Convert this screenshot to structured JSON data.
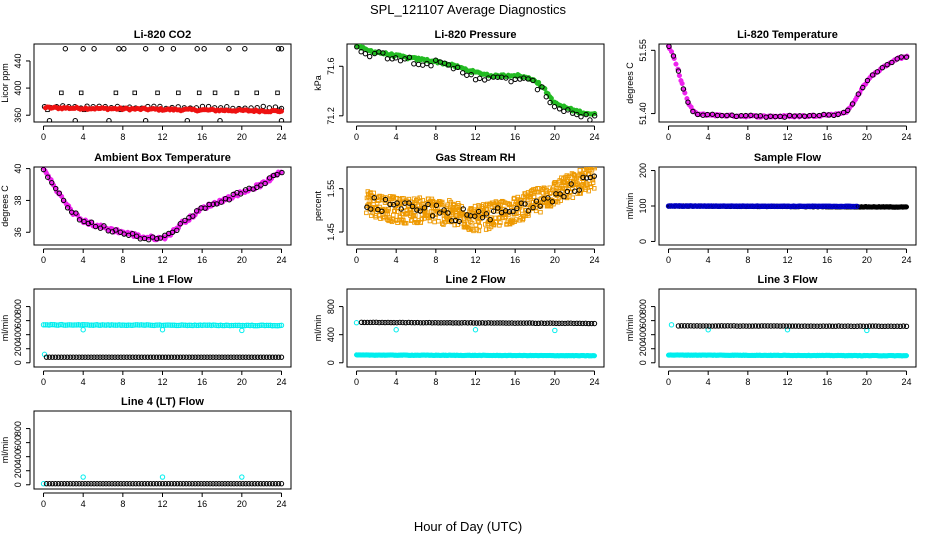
{
  "figure": {
    "title": "SPL_121107  Average Diagnostics",
    "xlabel": "Hour of Day (UTC)",
    "x_ticks": [
      "0",
      "4",
      "8",
      "12",
      "16",
      "20",
      "24"
    ]
  },
  "chart_data": [
    {
      "id": "li820-co2",
      "type": "scatter",
      "title": "Li-820 CO2",
      "ylabel": "Licor ppm",
      "xlim": [
        0,
        24
      ],
      "ylim": [
        350,
        465
      ],
      "yticks": [
        360,
        400,
        440
      ],
      "series": [
        {
          "color": "#000000",
          "marker": "circle-open",
          "kind": "dense",
          "x0": 0.1,
          "x1": 24,
          "n": 40,
          "y_start": 372,
          "y_end": 371,
          "noise": 2
        },
        {
          "color": "#000000",
          "marker": "circle-open",
          "kind": "points",
          "points": [
            [
              2.2,
              458
            ],
            [
              4,
              458
            ],
            [
              5.1,
              458
            ],
            [
              7.6,
              458
            ],
            [
              8.1,
              458
            ],
            [
              10.3,
              458
            ],
            [
              11.9,
              458
            ],
            [
              13.1,
              458
            ],
            [
              15.5,
              458
            ],
            [
              16.2,
              458
            ],
            [
              18.7,
              458
            ],
            [
              20.3,
              458
            ],
            [
              23.7,
              458
            ],
            [
              24,
              458
            ],
            [
              0.6,
              352
            ],
            [
              3.2,
              352
            ],
            [
              6.6,
              352
            ],
            [
              10.3,
              352
            ],
            [
              14.5,
              352
            ],
            [
              17.8,
              352
            ],
            [
              24,
              352
            ]
          ]
        },
        {
          "color": "#000000",
          "marker": "square-open",
          "kind": "points",
          "points": [
            [
              1.8,
              393
            ],
            [
              3.8,
              393
            ],
            [
              7.3,
              393
            ],
            [
              9.2,
              393
            ],
            [
              11.5,
              393
            ],
            [
              13.6,
              393
            ],
            [
              15.7,
              393
            ],
            [
              17.3,
              393
            ],
            [
              19.5,
              393
            ],
            [
              21.5,
              393
            ],
            [
              23.6,
              393
            ],
            [
              0.4,
              368
            ],
            [
              4.1,
              368
            ],
            [
              7.8,
              368
            ],
            [
              12,
              368
            ],
            [
              15.8,
              368
            ],
            [
              20,
              368
            ],
            [
              23.8,
              368
            ]
          ]
        },
        {
          "color": "#ee1111",
          "marker": "disc",
          "kind": "dense",
          "x0": 0.2,
          "x1": 24,
          "n": 130,
          "y_start": 371,
          "y_end": 366,
          "noise": 1.5
        }
      ]
    },
    {
      "id": "li820-pressure",
      "type": "scatter",
      "title": "Li-820 Pressure",
      "ylabel": "kPa",
      "xlim": [
        0,
        24
      ],
      "ylim": [
        71.15,
        71.78
      ],
      "yticks": [
        71.2,
        71.6
      ],
      "ytick_labels": [
        "71.2",
        "71.6"
      ],
      "series": [
        {
          "color": "#22bb22",
          "marker": "disc",
          "kind": "curve",
          "n": 150,
          "noise": 0.01,
          "curve": [
            [
              0,
              71.77
            ],
            [
              1,
              71.73
            ],
            [
              3,
              71.7
            ],
            [
              5,
              71.67
            ],
            [
              8,
              71.64
            ],
            [
              10,
              71.6
            ],
            [
              12,
              71.55
            ],
            [
              14,
              71.52
            ],
            [
              16,
              71.53
            ],
            [
              18,
              71.49
            ],
            [
              19,
              71.41
            ],
            [
              20,
              71.3
            ],
            [
              22,
              71.24
            ],
            [
              24,
              71.21
            ]
          ]
        },
        {
          "color": "#000000",
          "marker": "circle-open",
          "kind": "curve",
          "n": 55,
          "noise": 0.03,
          "curve": [
            [
              0,
              71.77
            ],
            [
              1,
              71.71
            ],
            [
              3,
              71.69
            ],
            [
              5,
              71.66
            ],
            [
              8,
              71.62
            ],
            [
              10,
              71.58
            ],
            [
              12,
              71.52
            ],
            [
              14,
              71.49
            ],
            [
              16,
              71.5
            ],
            [
              18,
              71.46
            ],
            [
              19,
              71.38
            ],
            [
              20,
              71.28
            ],
            [
              22,
              71.22
            ],
            [
              24,
              71.18
            ]
          ]
        }
      ]
    },
    {
      "id": "li820-temperature",
      "type": "scatter",
      "title": "Li-820 Temperature",
      "ylabel": "degrees C",
      "xlim": [
        0,
        24
      ],
      "ylim": [
        51.38,
        51.565
      ],
      "yticks": [
        51.4,
        51.55
      ],
      "ytick_labels": [
        "51.40",
        "51.55"
      ],
      "series": [
        {
          "color": "#ee22ee",
          "marker": "disc",
          "kind": "curve",
          "n": 160,
          "noise": 0.002,
          "curve": [
            [
              0,
              51.56
            ],
            [
              0.5,
              51.535
            ],
            [
              1,
              51.5
            ],
            [
              1.5,
              51.46
            ],
            [
              2,
              51.425
            ],
            [
              2.5,
              51.405
            ],
            [
              3,
              51.398
            ],
            [
              6,
              51.395
            ],
            [
              10,
              51.393
            ],
            [
              14,
              51.394
            ],
            [
              17,
              51.398
            ],
            [
              18,
              51.405
            ],
            [
              18.8,
              51.43
            ],
            [
              19.5,
              51.46
            ],
            [
              20.5,
              51.49
            ],
            [
              22,
              51.515
            ],
            [
              23,
              51.53
            ],
            [
              24,
              51.535
            ]
          ]
        },
        {
          "color": "#000000",
          "marker": "circle-open",
          "kind": "curve",
          "n": 50,
          "noise": 0.002,
          "curve": [
            [
              0,
              51.56
            ],
            [
              0.5,
              51.535
            ],
            [
              1,
              51.5
            ],
            [
              1.5,
              51.46
            ],
            [
              2,
              51.425
            ],
            [
              2.5,
              51.405
            ],
            [
              3,
              51.398
            ],
            [
              6,
              51.395
            ],
            [
              10,
              51.393
            ],
            [
              14,
              51.394
            ],
            [
              17,
              51.398
            ],
            [
              18,
              51.405
            ],
            [
              18.8,
              51.43
            ],
            [
              19.5,
              51.46
            ],
            [
              20.5,
              51.49
            ],
            [
              22,
              51.515
            ],
            [
              23,
              51.53
            ],
            [
              24,
              51.535
            ]
          ]
        }
      ]
    },
    {
      "id": "ambient-box-temperature",
      "type": "scatter",
      "title": "Ambient Box Temperature",
      "ylabel": "degrees C",
      "xlim": [
        0,
        24
      ],
      "ylim": [
        35.2,
        40.1
      ],
      "yticks": [
        36,
        38,
        40
      ],
      "series": [
        {
          "color": "#ee22ee",
          "marker": "disc",
          "kind": "curve",
          "n": 160,
          "noise": 0.12,
          "curve": [
            [
              0,
              40
            ],
            [
              1,
              39
            ],
            [
              2,
              38
            ],
            [
              3,
              37.2
            ],
            [
              4,
              36.7
            ],
            [
              6,
              36.3
            ],
            [
              8,
              36
            ],
            [
              10,
              35.7
            ],
            [
              12,
              35.6
            ],
            [
              13,
              36
            ],
            [
              14,
              36.6
            ],
            [
              15,
              37
            ],
            [
              16,
              37.5
            ],
            [
              18,
              38
            ],
            [
              20,
              38.5
            ],
            [
              22,
              39
            ],
            [
              24,
              39.8
            ]
          ]
        },
        {
          "color": "#000000",
          "marker": "circle-open",
          "kind": "curve",
          "n": 60,
          "noise": 0.15,
          "curve": [
            [
              0,
              40
            ],
            [
              1,
              39
            ],
            [
              2,
              38
            ],
            [
              3,
              37.2
            ],
            [
              4,
              36.7
            ],
            [
              6,
              36.3
            ],
            [
              8,
              36
            ],
            [
              10,
              35.7
            ],
            [
              12,
              35.6
            ],
            [
              13,
              36
            ],
            [
              14,
              36.6
            ],
            [
              15,
              37
            ],
            [
              16,
              37.5
            ],
            [
              18,
              38
            ],
            [
              20,
              38.5
            ],
            [
              22,
              39
            ],
            [
              24,
              39.8
            ]
          ]
        }
      ]
    },
    {
      "id": "gas-stream-rh",
      "type": "scatter",
      "title": "Gas Stream RH",
      "ylabel": "percent",
      "xlim": [
        0,
        24
      ],
      "ylim": [
        1.42,
        1.6
      ],
      "yticks": [
        1.45,
        1.55
      ],
      "ytick_labels": [
        "1.45",
        "1.55"
      ],
      "series": [
        {
          "color": "#ee9900",
          "marker": "square-open",
          "kind": "curve",
          "n": 650,
          "noise": 0.03,
          "curve": [
            [
              1,
              1.52
            ],
            [
              4,
              1.5
            ],
            [
              8,
              1.5
            ],
            [
              12,
              1.48
            ],
            [
              14,
              1.49
            ],
            [
              16,
              1.5
            ],
            [
              20,
              1.54
            ],
            [
              24,
              1.58
            ]
          ]
        },
        {
          "color": "#000000",
          "marker": "circle-open",
          "kind": "curve",
          "n": 60,
          "noise": 0.018,
          "curve": [
            [
              1,
              1.52
            ],
            [
              4,
              1.5
            ],
            [
              8,
              1.5
            ],
            [
              12,
              1.48
            ],
            [
              14,
              1.49
            ],
            [
              16,
              1.5
            ],
            [
              20,
              1.54
            ],
            [
              24,
              1.58
            ]
          ]
        }
      ]
    },
    {
      "id": "sample-flow",
      "type": "scatter",
      "title": "Sample Flow",
      "ylabel": "ml/min",
      "xlim": [
        0,
        24
      ],
      "ylim": [
        -10,
        210
      ],
      "yticks": [
        0,
        100,
        200
      ],
      "series": [
        {
          "color": "#000000",
          "marker": "disc",
          "kind": "dense",
          "x0": 0,
          "x1": 24,
          "n": 260,
          "y_start": 100,
          "y_end": 97,
          "noise": 0.8
        },
        {
          "color": "#0000cc",
          "marker": "circle-open",
          "kind": "dense",
          "x0": 0,
          "x1": 19,
          "n": 120,
          "y_start": 100,
          "y_end": 99,
          "noise": 0.5
        }
      ]
    },
    {
      "id": "line-1-flow",
      "type": "scatter",
      "title": "Line 1 Flow",
      "ylabel": "ml/min",
      "xlim": [
        0,
        24
      ],
      "ylim": [
        -60,
        1050
      ],
      "yticks": [
        0,
        200,
        400,
        600,
        800
      ],
      "series": [
        {
          "color": "#00eeee",
          "marker": "circle-open",
          "kind": "dense",
          "x0": 0,
          "x1": 24,
          "n": 130,
          "y_start": 540,
          "y_end": 530,
          "noise": 4
        },
        {
          "color": "#00eeee",
          "marker": "circle-open",
          "kind": "points",
          "points": [
            [
              4,
              470
            ],
            [
              12,
              470
            ],
            [
              20,
              460
            ],
            [
              0.1,
              120
            ]
          ]
        },
        {
          "color": "#000000",
          "marker": "circle-open",
          "kind": "dense",
          "x0": 0.3,
          "x1": 24,
          "n": 80,
          "y_start": 80,
          "y_end": 80,
          "noise": 0
        }
      ]
    },
    {
      "id": "line-2-flow",
      "type": "scatter",
      "title": "Line 2 Flow",
      "ylabel": "ml/min",
      "xlim": [
        0,
        24
      ],
      "ylim": [
        -60,
        1050
      ],
      "yticks": [
        0,
        400,
        800
      ],
      "series": [
        {
          "color": "#00eeee",
          "marker": "disc",
          "kind": "dense",
          "x0": 0,
          "x1": 24,
          "n": 220,
          "y_start": 110,
          "y_end": 100,
          "noise": 3
        },
        {
          "color": "#00eeee",
          "marker": "circle-open",
          "kind": "points",
          "points": [
            [
              0,
              570
            ],
            [
              4,
              470
            ],
            [
              12,
              470
            ],
            [
              20,
              460
            ]
          ]
        },
        {
          "color": "#000000",
          "marker": "circle-open",
          "kind": "dense",
          "x0": 0.5,
          "x1": 24,
          "n": 80,
          "y_start": 575,
          "y_end": 560,
          "noise": 2
        }
      ]
    },
    {
      "id": "line-3-flow",
      "type": "scatter",
      "title": "Line 3 Flow",
      "ylabel": "ml/min",
      "xlim": [
        0,
        24
      ],
      "ylim": [
        -60,
        1050
      ],
      "yticks": [
        0,
        200,
        400,
        600,
        800
      ],
      "series": [
        {
          "color": "#00eeee",
          "marker": "disc",
          "kind": "dense",
          "x0": 0,
          "x1": 24,
          "n": 220,
          "y_start": 110,
          "y_end": 100,
          "noise": 3
        },
        {
          "color": "#00eeee",
          "marker": "circle-open",
          "kind": "points",
          "points": [
            [
              0.3,
              540
            ],
            [
              4,
              470
            ],
            [
              12,
              470
            ],
            [
              20,
              460
            ]
          ]
        },
        {
          "color": "#000000",
          "marker": "circle-open",
          "kind": "dense",
          "x0": 1,
          "x1": 24,
          "n": 75,
          "y_start": 525,
          "y_end": 520,
          "noise": 2
        }
      ]
    },
    {
      "id": "line-4-lt-flow",
      "type": "scatter",
      "title": "Line 4 (LT) Flow",
      "ylabel": "ml/min",
      "xlim": [
        0,
        24
      ],
      "ylim": [
        -60,
        1050
      ],
      "yticks": [
        0,
        200,
        400,
        600,
        800
      ],
      "series": [
        {
          "color": "#00eeee",
          "marker": "circle-open",
          "kind": "points",
          "points": [
            [
              0,
              15
            ],
            [
              4,
              110
            ],
            [
              12,
              110
            ],
            [
              20,
              110
            ]
          ]
        },
        {
          "color": "#000000",
          "marker": "circle-open",
          "kind": "dense",
          "x0": 0.3,
          "x1": 24,
          "n": 80,
          "y_start": 15,
          "y_end": 15,
          "noise": 0
        }
      ]
    }
  ]
}
